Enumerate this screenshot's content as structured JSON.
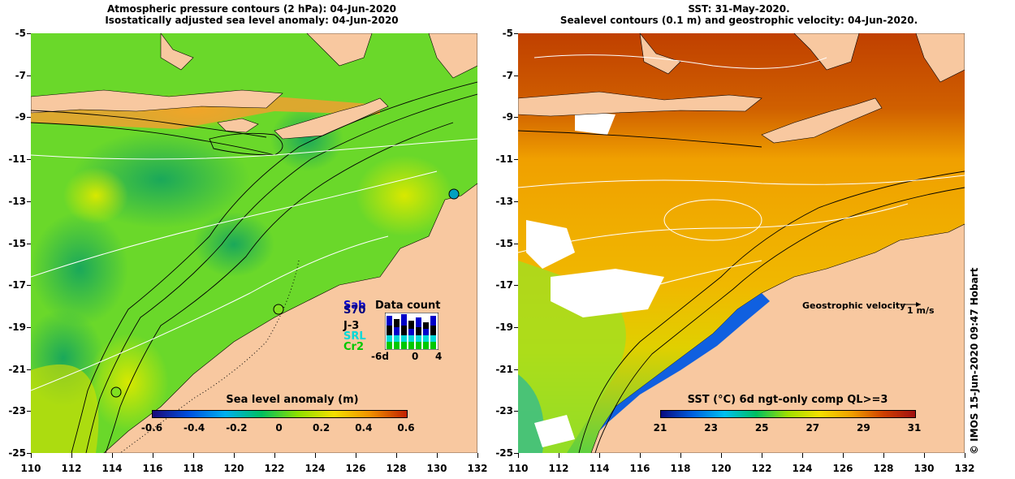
{
  "left_panel": {
    "title_line1": "Atmospheric pressure contours (2 hPa): 04-Jun-2020",
    "title_line2": "Isostatically adjusted sea level anomaly: 04-Jun-2020",
    "colorbar": {
      "title": "Sea level anomaly (m)",
      "ticks": [
        "-0.6",
        "-0.4",
        "-0.2",
        "0",
        "0.2",
        "0.4",
        "0.6"
      ],
      "colors": [
        "#1a0a7a",
        "#0050e0",
        "#00b0f0",
        "#00c060",
        "#8ee000",
        "#f5e000",
        "#f09000",
        "#c02000"
      ]
    },
    "data_count": {
      "title": "Data count",
      "satellites": [
        {
          "name": "Sab",
          "color": "#0000c8"
        },
        {
          "name": "S70",
          "color": "#000080"
        },
        {
          "name": "J-3",
          "color": "#000000"
        },
        {
          "name": "SRL",
          "color": "#00d8d8"
        },
        {
          "name": "Cr2",
          "color": "#00c800"
        }
      ],
      "xaxis": [
        "-6d",
        "0",
        "4"
      ]
    }
  },
  "right_panel": {
    "title_line1": "SST: 31-May-2020.",
    "title_line2": "Sealevel contours (0.1 m) and geostrophic velocity: 04-Jun-2020.",
    "colorbar": {
      "title": "SST (°C) 6d ngt-only comp QL>=3",
      "ticks": [
        "21",
        "23",
        "25",
        "27",
        "29",
        "31"
      ],
      "colors": [
        "#0a0a80",
        "#0060e0",
        "#00c0f0",
        "#00c060",
        "#a0e000",
        "#f5e000",
        "#f0a000",
        "#d04000",
        "#a01010"
      ]
    },
    "velocity_legend": {
      "label": "Geostrophic velocity",
      "unit": "1 m/s"
    }
  },
  "axes": {
    "y_labels": [
      "-5",
      "-7",
      "-9",
      "-11",
      "-13",
      "-15",
      "-17",
      "-19",
      "-21",
      "-23",
      "-25"
    ],
    "x_labels": [
      "110",
      "112",
      "114",
      "116",
      "118",
      "120",
      "122",
      "124",
      "126",
      "128",
      "130",
      "132"
    ]
  },
  "copyright": "© IMOS 15-Jun-2020 09:47 Hobart",
  "colors": {
    "land": "#f8c8a0",
    "left_sea": "#6ad82a",
    "right_sea": "#f0a400"
  }
}
